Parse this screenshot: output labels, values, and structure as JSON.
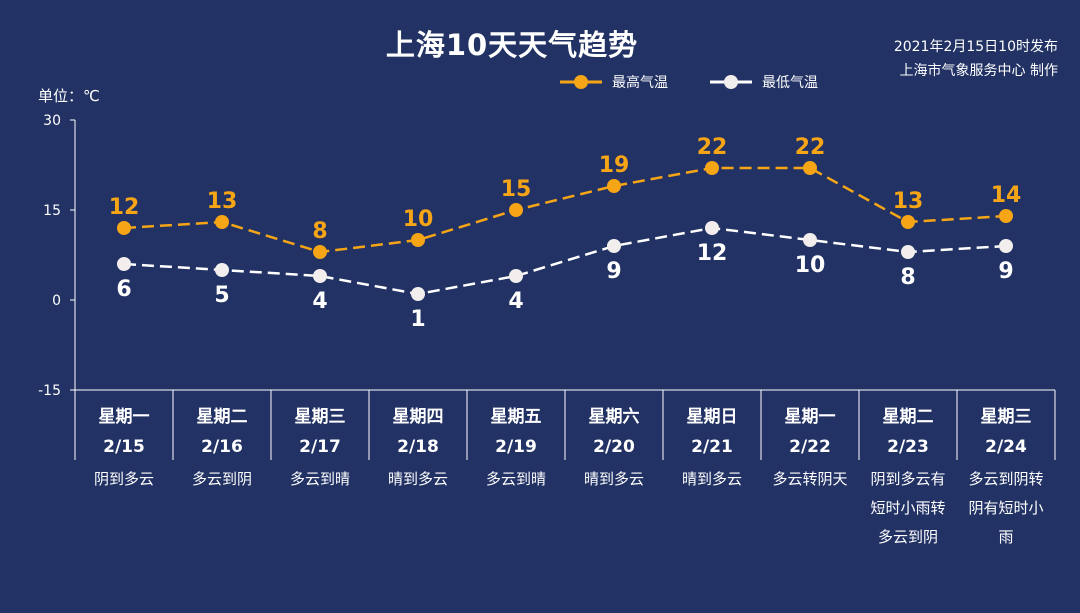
{
  "header": {
    "title": "上海10天天气趋势",
    "publish_time": "2021年2月15日10时发布",
    "publisher": "上海市气象服务中心 制作"
  },
  "unit_label": "单位：℃",
  "colors": {
    "background": "#223264",
    "high": "#F5A516",
    "low": "#FFFFFF",
    "axis": "#FFFFFF"
  },
  "chart_data": {
    "type": "line",
    "ylim": [
      -15,
      30
    ],
    "yticks": [
      30,
      15,
      0,
      -15
    ],
    "ytick_labels": [
      "30",
      "15",
      "0",
      "-15"
    ],
    "legend_position": "top-right",
    "grid": false,
    "series": [
      {
        "name": "最高气温",
        "values": [
          12,
          13,
          8,
          10,
          15,
          19,
          22,
          22,
          13,
          14
        ]
      },
      {
        "name": "最低气温",
        "values": [
          6,
          5,
          4,
          1,
          4,
          9,
          12,
          10,
          8,
          9
        ]
      }
    ],
    "weekdays": [
      "星期一",
      "星期二",
      "星期三",
      "星期四",
      "星期五",
      "星期六",
      "星期日",
      "星期一",
      "星期二",
      "星期三"
    ],
    "dates": [
      "2/15",
      "2/16",
      "2/17",
      "2/18",
      "2/19",
      "2/20",
      "2/21",
      "2/22",
      "2/23",
      "2/24"
    ],
    "weather": [
      [
        "阴到多云"
      ],
      [
        "多云到阴"
      ],
      [
        "多云到晴"
      ],
      [
        "晴到多云"
      ],
      [
        "多云到晴"
      ],
      [
        "晴到多云"
      ],
      [
        "晴到多云"
      ],
      [
        "多云转阴天"
      ],
      [
        "阴到多云有",
        "短时小雨转",
        "多云到阴"
      ],
      [
        "多云到阴转",
        "阴有短时小",
        "雨"
      ]
    ]
  }
}
